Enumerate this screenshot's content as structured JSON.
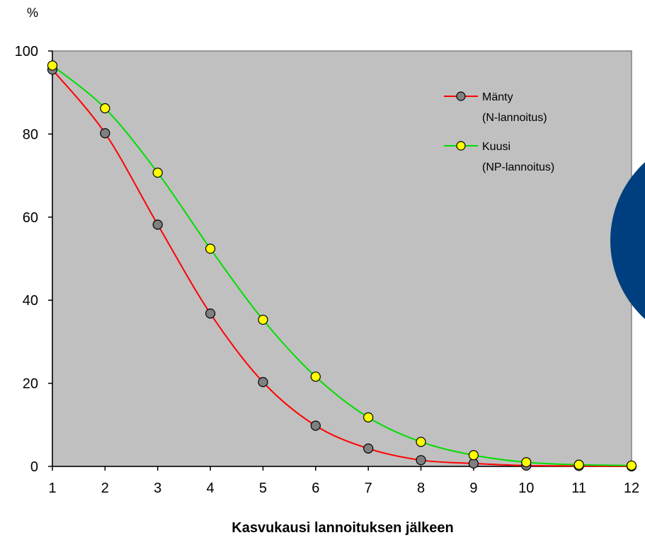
{
  "chart_data": {
    "type": "line",
    "ylabel": "%",
    "xlabel": "Kasvukausi lannoituksen jälkeen",
    "x": [
      1,
      2,
      3,
      4,
      5,
      6,
      7,
      8,
      9,
      10,
      11,
      12
    ],
    "ylim": [
      0,
      100
    ],
    "yticks": [
      0,
      20,
      40,
      60,
      80,
      100
    ],
    "xlim": [
      1,
      12
    ],
    "grid": false,
    "plot_background": "#c0c0c0",
    "legend_position": "top-right",
    "series": [
      {
        "name": "Mänty",
        "name_sub": "(N-lannoitus)",
        "color": "#ff0000",
        "marker_color": "#808080",
        "values": [
          95.5,
          80.2,
          58.2,
          36.8,
          20.3,
          9.8,
          4.3,
          1.5,
          0.7,
          0.2,
          0.1,
          0.0
        ]
      },
      {
        "name": "Kuusi",
        "name_sub": "(NP-lannoitus)",
        "color": "#00dd00",
        "marker_color": "#ffff00",
        "values": [
          96.5,
          86.2,
          70.7,
          52.4,
          35.3,
          21.6,
          11.8,
          5.9,
          2.7,
          1.0,
          0.4,
          0.2
        ]
      }
    ]
  },
  "decoration": {
    "circle_color": "#003f7f"
  }
}
